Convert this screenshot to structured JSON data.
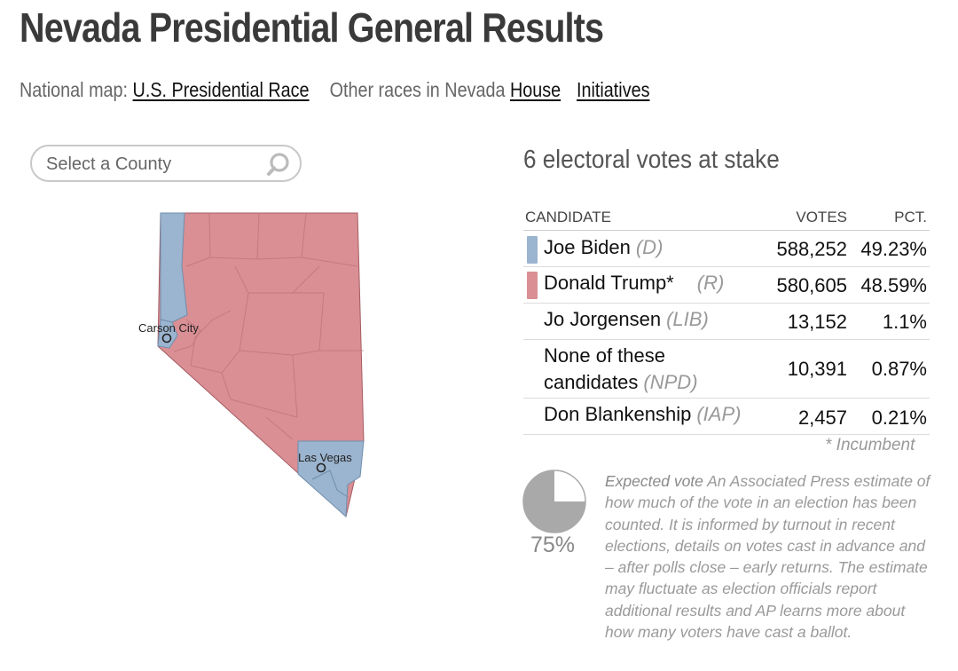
{
  "header": {
    "title": "Nevada Presidential General Results"
  },
  "nav": {
    "national_prefix": "National map:",
    "national_link": "U.S. Presidential Race",
    "other_prefix": "Other races in Nevada",
    "links": [
      "House",
      "Initiatives"
    ]
  },
  "search": {
    "placeholder": "Select a County",
    "icon": "search-icon"
  },
  "map": {
    "cities": [
      "Carson City",
      "Las Vegas"
    ],
    "colors": {
      "dem": "#9bb4cf",
      "rep": "#d98f94",
      "border": "#a55c62"
    }
  },
  "results": {
    "stake": "6 electoral votes at stake",
    "headers": {
      "candidate": "CANDIDATE",
      "votes": "VOTES",
      "pct": "PCT."
    },
    "rows": [
      {
        "name": "Joe Biden",
        "party": "(D)",
        "votes": "588,252",
        "pct": "49.23%",
        "color": "#9bb4cf"
      },
      {
        "name": "Donald Trump*",
        "party": "(R)",
        "votes": "580,605",
        "pct": "48.59%",
        "color": "#d98f94"
      },
      {
        "name": "Jo Jorgensen",
        "party": "(LIB)",
        "votes": "13,152",
        "pct": "1.1%",
        "color": ""
      },
      {
        "name_line1": "None of these",
        "name_line2": "candidates",
        "party": "(NPD)",
        "votes": "10,391",
        "pct": "0.87%",
        "color": ""
      },
      {
        "name": "Don Blankenship",
        "party": "(IAP)",
        "votes": "2,457",
        "pct": "0.21%",
        "color": ""
      }
    ],
    "incumbent_note": "* Incumbent"
  },
  "expected": {
    "percent": "75%",
    "fraction": 0.75,
    "label": "Expected vote",
    "text": "An Associated Press estimate of how much of the vote in an election has been counted. It is informed by turnout in recent elections, details on votes cast in advance and – after polls close – early returns. The estimate may fluctuate as election officials report additional results and AP learns more about how many voters have cast a ballot."
  }
}
